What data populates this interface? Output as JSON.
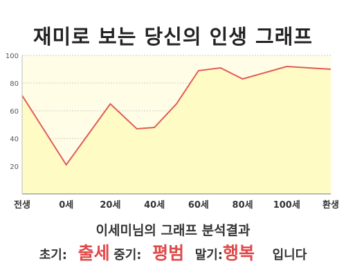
{
  "header": {
    "title": "재미로 보는 당신의 인생 그래프"
  },
  "result": {
    "heading": "이세미님의 그래프 분석결과",
    "early_label": "초기:",
    "early_value": "출세",
    "mid_label": "중기:",
    "mid_value": "평범",
    "late_label": "말기:",
    "late_value": "행복",
    "ending": "입니다"
  },
  "colors": {
    "line": "#e05a5a",
    "fill": "#fffbc5",
    "plot_bg": "#fffde6",
    "value_text": "#e04848"
  },
  "chart_data": {
    "type": "area",
    "x_tick_labels": [
      "전생",
      "0세",
      "20세",
      "40세",
      "60세",
      "80세",
      "100세",
      "환생"
    ],
    "y_ticks": [
      20,
      40,
      60,
      80,
      100
    ],
    "ylim": [
      0,
      100
    ],
    "grid": true,
    "points": [
      {
        "x": 0,
        "y": 71
      },
      {
        "x": 1,
        "y": 21
      },
      {
        "x": 2,
        "y": 65
      },
      {
        "x": 2.6,
        "y": 47
      },
      {
        "x": 3,
        "y": 48
      },
      {
        "x": 3.5,
        "y": 65
      },
      {
        "x": 4,
        "y": 89
      },
      {
        "x": 4.5,
        "y": 91
      },
      {
        "x": 5,
        "y": 83
      },
      {
        "x": 6,
        "y": 92
      },
      {
        "x": 7,
        "y": 90
      }
    ]
  }
}
